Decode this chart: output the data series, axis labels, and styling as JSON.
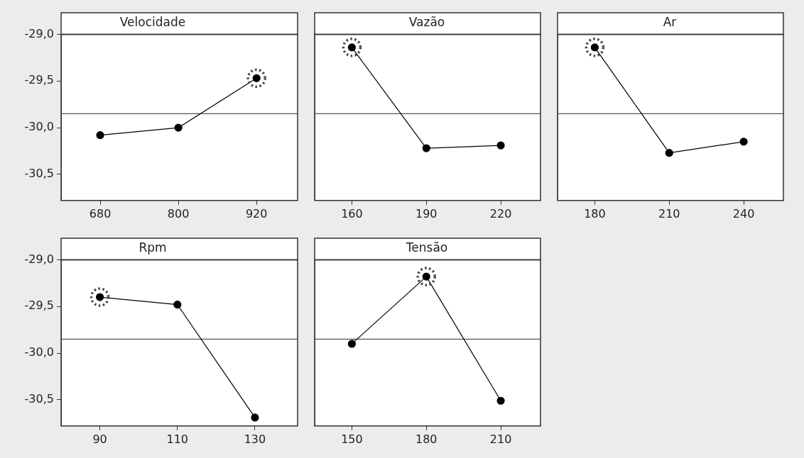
{
  "chart_data": [
    {
      "type": "line",
      "title": "Velocidade",
      "x": [
        680,
        800,
        920
      ],
      "xlim": [
        620,
        983
      ],
      "xticks": [
        680,
        800,
        920
      ],
      "ylim": [
        -30.78,
        -29.0
      ],
      "yticks": [
        {
          "value": -29.0,
          "label": "-29,0"
        },
        {
          "value": -29.5,
          "label": "-29,5"
        },
        {
          "value": -30.0,
          "label": "-30,0"
        },
        {
          "value": -30.5,
          "label": "-30,5"
        }
      ],
      "grid": false,
      "ref_lines": [
        {
          "axis": "y",
          "value": -29.85,
          "color": "#555555"
        }
      ],
      "series": [
        {
          "color": "#000000",
          "marker": "circle",
          "values": [
            -30.08,
            -30.0,
            -29.47
          ]
        },
        {
          "type": "scatter",
          "color": "#444444",
          "marker": "circle",
          "line_style": "dotted",
          "values": [
            null,
            null,
            -29.47
          ]
        }
      ]
    },
    {
      "type": "line",
      "title": "Vazão",
      "x": [
        160,
        190,
        220
      ],
      "xlim": [
        145,
        236
      ],
      "xticks": [
        160,
        190,
        220
      ],
      "ylim": [
        -30.78,
        -29.0
      ],
      "tick_labels": "x",
      "grid": false,
      "ref_lines": [
        {
          "axis": "y",
          "value": -29.85,
          "color": "#555555"
        }
      ],
      "series": [
        {
          "color": "#000000",
          "marker": "circle",
          "values": [
            -29.14,
            -30.22,
            -30.19
          ]
        },
        {
          "type": "scatter",
          "color": "#444444",
          "marker": "circle",
          "line_style": "dotted",
          "values": [
            -29.14,
            null,
            null
          ]
        }
      ]
    },
    {
      "type": "line",
      "title": "Ar",
      "x": [
        180,
        210,
        240
      ],
      "xlim": [
        165,
        256
      ],
      "xticks": [
        180,
        210,
        240
      ],
      "ylim": [
        -30.78,
        -29.0
      ],
      "tick_labels": "x",
      "grid": false,
      "ref_lines": [
        {
          "axis": "y",
          "value": -29.85,
          "color": "#555555"
        }
      ],
      "series": [
        {
          "color": "#000000",
          "marker": "circle",
          "values": [
            -29.14,
            -30.27,
            -30.15
          ]
        },
        {
          "type": "scatter",
          "color": "#444444",
          "marker": "circle",
          "line_style": "dotted",
          "values": [
            -29.14,
            null,
            null
          ]
        }
      ]
    },
    {
      "type": "line",
      "title": "Rpm",
      "x": [
        90,
        110,
        130
      ],
      "xlim": [
        80,
        141
      ],
      "xticks": [
        90,
        110,
        130
      ],
      "ylim": [
        -30.78,
        -29.0
      ],
      "yticks": [
        {
          "value": -29.0,
          "label": "-29,0"
        },
        {
          "value": -29.5,
          "label": "-29,5"
        },
        {
          "value": -30.0,
          "label": "-30,0"
        },
        {
          "value": -30.5,
          "label": "-30,5"
        }
      ],
      "grid": false,
      "ref_lines": [
        {
          "axis": "y",
          "value": -29.85,
          "color": "#555555"
        }
      ],
      "series": [
        {
          "color": "#000000",
          "marker": "circle",
          "values": [
            -29.4,
            -29.48,
            -30.69
          ]
        },
        {
          "type": "scatter",
          "color": "#444444",
          "marker": "circle",
          "line_style": "dotted",
          "values": [
            -29.4,
            null,
            null
          ]
        }
      ]
    },
    {
      "type": "line",
      "title": "Tensão",
      "x": [
        150,
        180,
        210
      ],
      "xlim": [
        135,
        226
      ],
      "xticks": [
        150,
        180,
        210
      ],
      "ylim": [
        -30.78,
        -29.0
      ],
      "tick_labels": "x",
      "grid": false,
      "ref_lines": [
        {
          "axis": "y",
          "value": -29.85,
          "color": "#555555"
        }
      ],
      "series": [
        {
          "color": "#000000",
          "marker": "circle",
          "values": [
            -29.9,
            -29.18,
            -30.51
          ]
        },
        {
          "type": "scatter",
          "color": "#444444",
          "marker": "circle",
          "line_style": "dotted",
          "values": [
            null,
            -29.18,
            null
          ]
        }
      ]
    }
  ]
}
